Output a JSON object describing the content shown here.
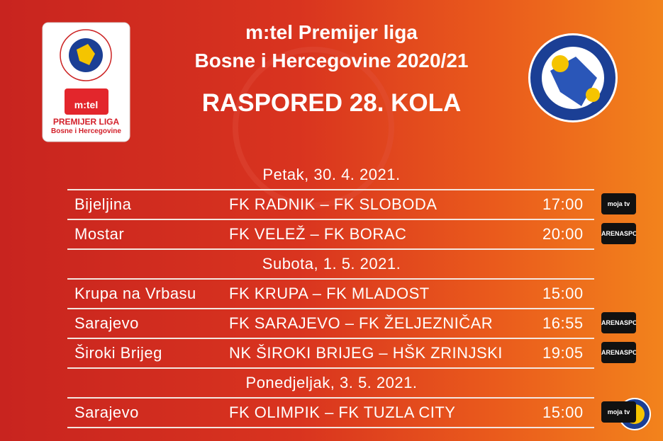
{
  "header": {
    "title_line1": "m:tel Premijer liga",
    "title_line2": "Bosne i Hercegovine 2020/21",
    "subtitle": "RASPORED 28. KOLA"
  },
  "league_logo": {
    "brand": "m:tel",
    "name": "PREMIJER LIGA",
    "region": "Bosne i Hercegovine"
  },
  "schedule": [
    {
      "day": "Petak, 30. 4. 2021.",
      "matches": [
        {
          "city": "Bijeljina",
          "match": "FK RADNIK – FK SLOBODA",
          "time": "17:00",
          "tv": "moja tv"
        },
        {
          "city": "Mostar",
          "match": "FK VELEŽ – FK BORAC",
          "time": "20:00",
          "tv": "ARENASPORT"
        }
      ]
    },
    {
      "day": "Subota, 1. 5. 2021.",
      "matches": [
        {
          "city": "Krupa na Vrbasu",
          "match": "FK KRUPA – FK MLADOST",
          "time": "15:00"
        },
        {
          "city": "Sarajevo",
          "match": "FK SARAJEVO – FK ŽELJEZNIČAR",
          "time": "16:55",
          "tv": "ARENASPORT"
        },
        {
          "city": "Široki Brijeg",
          "match": "NK ŠIROKI BRIJEG – HŠK ZRINJSKI",
          "time": "19:05",
          "tv": "ARENASPORT"
        }
      ]
    },
    {
      "day": "Ponedjeljak, 3. 5. 2021.",
      "matches": [
        {
          "city": "Sarajevo",
          "match": "FK OLIMPIK – FK TUZLA CITY",
          "time": "15:00",
          "tv": "moja tv"
        }
      ]
    }
  ]
}
